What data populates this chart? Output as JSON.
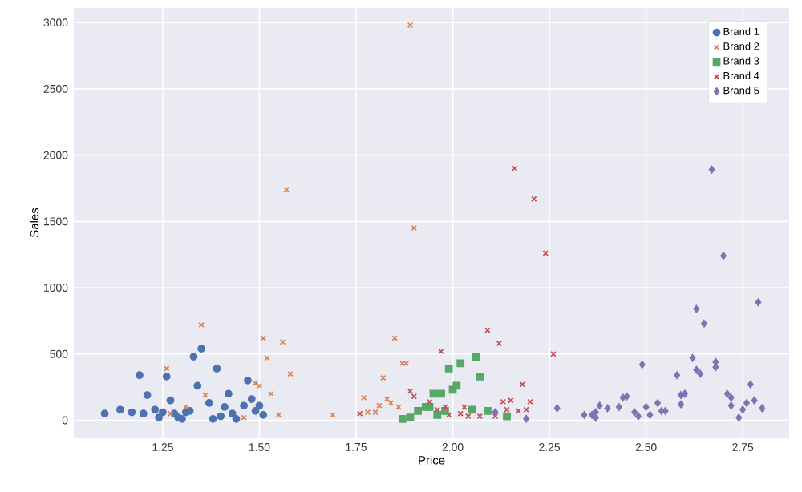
{
  "chart_data": {
    "type": "scatter",
    "xlabel": "Price",
    "ylabel": "Sales",
    "xlim": [
      1.02,
      2.87
    ],
    "ylim": [
      -130,
      3110
    ],
    "xticks": [
      {
        "value": 1.25,
        "label": "1.25"
      },
      {
        "value": 1.5,
        "label": "1.50"
      },
      {
        "value": 1.75,
        "label": "1.75"
      },
      {
        "value": 2.0,
        "label": "2.00"
      },
      {
        "value": 2.25,
        "label": "2.25"
      },
      {
        "value": 2.5,
        "label": "2.50"
      },
      {
        "value": 2.75,
        "label": "2.75"
      }
    ],
    "yticks": [
      0,
      500,
      1000,
      1500,
      2000,
      2500,
      3000
    ],
    "grid": true,
    "legend": "top right",
    "series": [
      {
        "name": "Brand 1",
        "color": "#4c72b0",
        "marker": "circle",
        "x": [
          1.1,
          1.14,
          1.17,
          1.2,
          1.19,
          1.21,
          1.23,
          1.24,
          1.25,
          1.26,
          1.27,
          1.28,
          1.29,
          1.3,
          1.31,
          1.32,
          1.33,
          1.34,
          1.35,
          1.37,
          1.38,
          1.39,
          1.4,
          1.41,
          1.42,
          1.43,
          1.44,
          1.46,
          1.47,
          1.48,
          1.49,
          1.5,
          1.51
        ],
        "values": [
          50,
          80,
          60,
          50,
          340,
          190,
          80,
          20,
          60,
          330,
          150,
          50,
          20,
          10,
          60,
          70,
          480,
          260,
          540,
          130,
          10,
          390,
          30,
          100,
          200,
          50,
          10,
          110,
          300,
          160,
          70,
          110,
          40
        ]
      },
      {
        "name": "Brand 2",
        "color": "#dd8452",
        "marker": "cross",
        "x": [
          1.26,
          1.27,
          1.31,
          1.35,
          1.36,
          1.46,
          1.49,
          1.5,
          1.51,
          1.52,
          1.53,
          1.55,
          1.56,
          1.57,
          1.58,
          1.69,
          1.77,
          1.78,
          1.8,
          1.81,
          1.82,
          1.83,
          1.84,
          1.85,
          1.86,
          1.87,
          1.88,
          1.89,
          1.9
        ],
        "values": [
          390,
          50,
          100,
          720,
          190,
          20,
          280,
          260,
          620,
          470,
          200,
          40,
          590,
          1740,
          350,
          40,
          170,
          60,
          60,
          110,
          320,
          160,
          130,
          620,
          100,
          430,
          430,
          2980,
          1450
        ]
      },
      {
        "name": "Brand 3",
        "color": "#55a868",
        "marker": "square",
        "x": [
          1.87,
          1.89,
          1.91,
          1.93,
          1.94,
          1.95,
          1.96,
          1.97,
          1.98,
          1.99,
          2.0,
          2.01,
          2.02,
          2.05,
          2.06,
          2.07,
          2.09,
          2.14
        ],
        "values": [
          10,
          20,
          70,
          100,
          100,
          200,
          40,
          200,
          70,
          390,
          230,
          260,
          430,
          80,
          480,
          330,
          70,
          30
        ]
      },
      {
        "name": "Brand 4",
        "color": "#c44e52",
        "marker": "cross",
        "x": [
          1.76,
          1.89,
          1.9,
          1.94,
          1.96,
          1.97,
          1.98,
          1.99,
          2.02,
          2.03,
          2.04,
          2.07,
          2.09,
          2.11,
          2.12,
          2.13,
          2.14,
          2.15,
          2.16,
          2.17,
          2.18,
          2.19,
          2.2,
          2.21,
          2.24,
          2.26
        ],
        "values": [
          50,
          220,
          180,
          140,
          80,
          520,
          100,
          40,
          50,
          100,
          30,
          30,
          680,
          30,
          580,
          140,
          80,
          150,
          1900,
          70,
          270,
          80,
          140,
          1670,
          1260,
          500
        ]
      },
      {
        "name": "Brand 5",
        "color": "#8172b3",
        "marker": "diamond",
        "x": [
          2.11,
          2.19,
          2.27,
          2.34,
          2.36,
          2.37,
          2.37,
          2.38,
          2.4,
          2.43,
          2.44,
          2.45,
          2.47,
          2.48,
          2.49,
          2.5,
          2.51,
          2.53,
          2.54,
          2.55,
          2.58,
          2.59,
          2.59,
          2.6,
          2.62,
          2.63,
          2.63,
          2.64,
          2.65,
          2.67,
          2.68,
          2.68,
          2.7,
          2.71,
          2.72,
          2.72,
          2.74,
          2.75,
          2.76,
          2.77,
          2.78,
          2.79,
          2.8
        ],
        "values": [
          60,
          10,
          90,
          40,
          40,
          60,
          20,
          110,
          90,
          100,
          170,
          180,
          60,
          30,
          420,
          100,
          40,
          130,
          70,
          70,
          340,
          190,
          120,
          200,
          470,
          380,
          840,
          350,
          730,
          1890,
          400,
          440,
          1240,
          200,
          110,
          170,
          20,
          80,
          130,
          270,
          150,
          890,
          90
        ]
      }
    ]
  }
}
